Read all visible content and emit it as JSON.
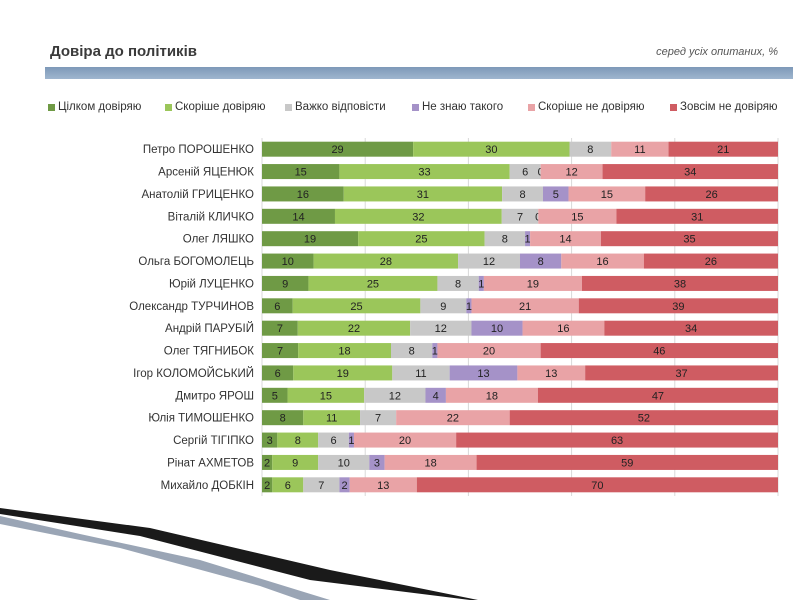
{
  "slide": {
    "title": "Довіра до політиків",
    "subtitle": "серед усіх опитаних, %"
  },
  "colors": {
    "title_rule": "#8aa3c0",
    "gridline": "#d9d9d9",
    "decor_dark": "#1a1a1a",
    "decor_light": "#9aa5b5"
  },
  "chart_data": {
    "type": "bar",
    "orientation": "horizontal",
    "stacked": true,
    "legend_placement": "top",
    "grid": true,
    "categories": [
      "Петро ПОРОШЕНКО",
      "Арсеній ЯЦЕНЮК",
      "Анатолій ГРИЦЕНКО",
      "Віталій КЛИЧКО",
      "Олег ЛЯШКО",
      "Ольга БОГОМОЛЕЦЬ",
      "Юрій ЛУЦЕНКО",
      "Олександр ТУРЧИНОВ",
      "Андрій ПАРУБІЙ",
      "Олег ТЯГНИБОК",
      "Ігор КОЛОМОЙСЬКИЙ",
      "Дмитро ЯРОШ",
      "Юлія ТИМОШЕНКО",
      "Сергій ТІГІПКО",
      "Рінат АХМЕТОВ",
      "Михайло ДОБКІН"
    ],
    "series": [
      {
        "name": "Цілком довіряю",
        "color": "#6f9a45",
        "values": [
          29,
          15,
          16,
          14,
          19,
          10,
          9,
          6,
          7,
          7,
          6,
          5,
          8,
          3,
          2,
          2
        ]
      },
      {
        "name": "Скоріше довіряю",
        "color": "#9bc65a",
        "values": [
          30,
          33,
          31,
          32,
          25,
          28,
          25,
          25,
          22,
          18,
          19,
          15,
          11,
          8,
          9,
          6
        ]
      },
      {
        "name": "Важко відповісти",
        "color": "#c8c8c8",
        "values": [
          8,
          6,
          8,
          7,
          8,
          12,
          8,
          9,
          12,
          8,
          11,
          12,
          7,
          6,
          10,
          7
        ]
      },
      {
        "name": "Не знаю такого",
        "color": "#a592c8",
        "values": [
          null,
          0,
          5,
          0,
          1,
          8,
          1,
          1,
          10,
          1,
          13,
          4,
          null,
          1,
          3,
          2
        ]
      },
      {
        "name": "Скоріше не довіряю",
        "color": "#e9a3a6",
        "values": [
          11,
          12,
          15,
          15,
          14,
          16,
          19,
          21,
          16,
          20,
          13,
          18,
          22,
          20,
          18,
          13
        ]
      },
      {
        "name": "Зовсім не довіряю",
        "color": "#cf5c62",
        "values": [
          21,
          34,
          26,
          31,
          35,
          26,
          38,
          39,
          34,
          46,
          37,
          47,
          52,
          63,
          59,
          70
        ]
      }
    ]
  }
}
